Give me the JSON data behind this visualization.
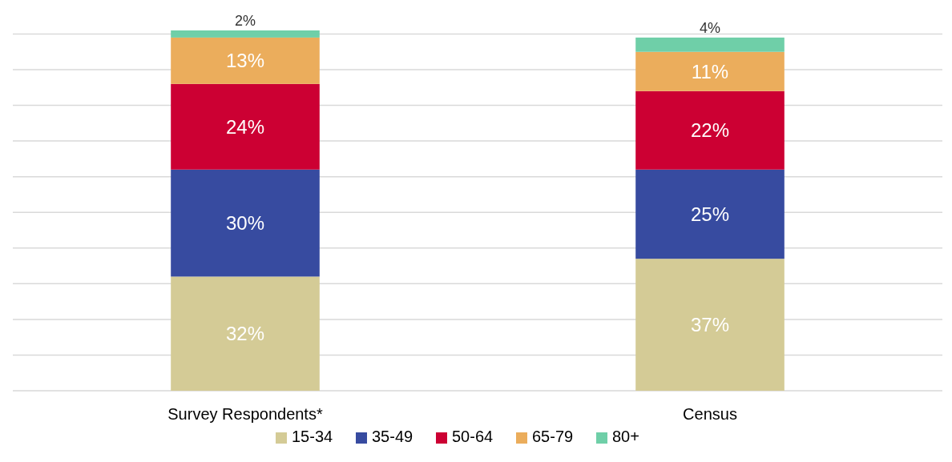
{
  "chart_data": {
    "type": "bar",
    "stacked": true,
    "categories": [
      "Survey Respondents*",
      "Census"
    ],
    "series": [
      {
        "name": "15-34",
        "color": "#d4cb96",
        "values": [
          32,
          37
        ],
        "value_labels": [
          "32%",
          "37%"
        ]
      },
      {
        "name": "35-49",
        "color": "#374ba0",
        "values": [
          30,
          25
        ],
        "value_labels": [
          "30%",
          "25%"
        ]
      },
      {
        "name": "50-64",
        "color": "#cc0033",
        "values": [
          24,
          22
        ],
        "value_labels": [
          "24%",
          "22%"
        ]
      },
      {
        "name": "65-79",
        "color": "#ebad5c",
        "values": [
          13,
          11
        ],
        "value_labels": [
          "13%",
          "11%"
        ]
      },
      {
        "name": "80+",
        "color": "#6fcfa8",
        "values": [
          2,
          4
        ],
        "value_labels": [
          "2%",
          "4%"
        ]
      }
    ],
    "ylim": [
      0,
      101
    ],
    "yticks": [
      {
        "value": 0,
        "label": null
      },
      {
        "value": 10,
        "label": null
      },
      {
        "value": 20,
        "label": null
      },
      {
        "value": 30,
        "label": null
      },
      {
        "value": 40,
        "label": null
      },
      {
        "value": 50,
        "label": null
      },
      {
        "value": 60,
        "label": null
      },
      {
        "value": 70,
        "label": null
      },
      {
        "value": 80,
        "label": null
      },
      {
        "value": 90,
        "label": null
      },
      {
        "value": 100,
        "label": null
      }
    ],
    "grid": "y",
    "tick_labels": "x",
    "legend": "bottom"
  }
}
